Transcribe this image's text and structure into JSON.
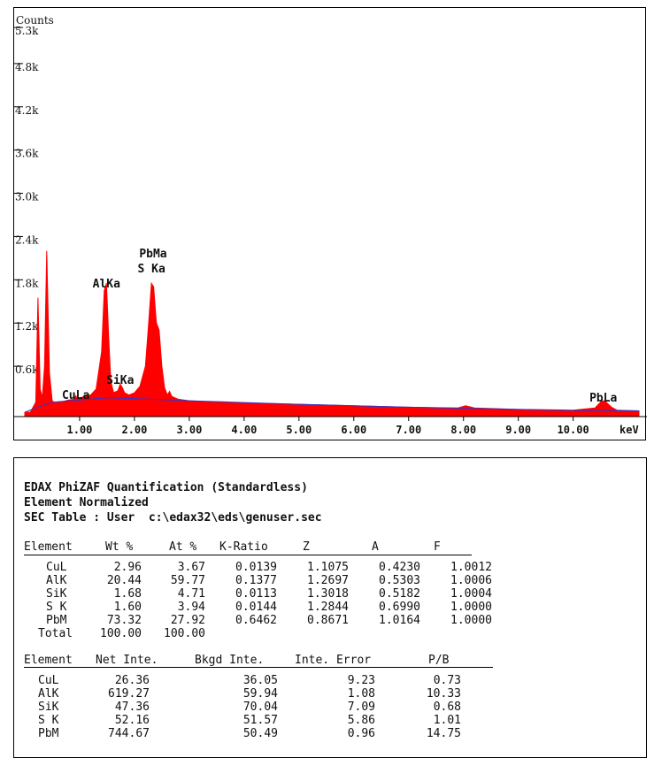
{
  "chart_data": {
    "type": "area",
    "ylabel": "Counts",
    "xlabel": "keV",
    "xlim": [
      0.0,
      11.2
    ],
    "ylim": [
      0,
      5400
    ],
    "y_ticks": [
      "0.6k",
      "1.2k",
      "1.8k",
      "2.4k",
      "3.0k",
      "3.6k",
      "4.2k",
      "4.8k",
      "5.3k"
    ],
    "y_tick_values": [
      600,
      1200,
      1800,
      2400,
      3000,
      3600,
      4200,
      4800,
      5300
    ],
    "x_ticks": [
      "1.00",
      "2.00",
      "3.00",
      "4.00",
      "5.00",
      "6.00",
      "7.00",
      "8.00",
      "9.00",
      "10.00"
    ],
    "x_tick_values": [
      1,
      2,
      3,
      4,
      5,
      6,
      7,
      8,
      9,
      10
    ],
    "x_unit_label": "keV",
    "series": [
      {
        "x": [
          0.0,
          0.1,
          0.2,
          0.24,
          0.28,
          0.32,
          0.36,
          0.4,
          0.45,
          0.5,
          0.55,
          0.6,
          0.7,
          0.8,
          0.9,
          0.93,
          0.96,
          1.0,
          1.1,
          1.2,
          1.3,
          1.4,
          1.45,
          1.49,
          1.53,
          1.57,
          1.62,
          1.7,
          1.74,
          1.78,
          1.82,
          1.9,
          2.0,
          2.1,
          2.2,
          2.26,
          2.31,
          2.35,
          2.4,
          2.45,
          2.5,
          2.55,
          2.6,
          2.64,
          2.68,
          2.8,
          3.0,
          3.5,
          4.0,
          5.0,
          6.0,
          7.0,
          7.9,
          8.04,
          8.2,
          9.0,
          10.0,
          10.4,
          10.5,
          10.55,
          10.6,
          10.7,
          10.8,
          11.2
        ],
        "y": [
          60,
          60,
          200,
          1650,
          380,
          260,
          700,
          2300,
          600,
          220,
          190,
          200,
          210,
          230,
          240,
          290,
          240,
          260,
          280,
          300,
          380,
          900,
          1750,
          1850,
          1100,
          480,
          330,
          360,
          450,
          400,
          330,
          300,
          330,
          420,
          700,
          1300,
          1850,
          1800,
          1300,
          1200,
          700,
          400,
          300,
          350,
          280,
          240,
          220,
          200,
          190,
          170,
          150,
          130,
          120,
          150,
          120,
          100,
          90,
          120,
          200,
          220,
          200,
          130,
          90,
          80
        ]
      },
      {
        "x": [
          0.0,
          0.2,
          0.5,
          1.0,
          1.5,
          2.0,
          2.5,
          3.0,
          4.0,
          5.0,
          6.0,
          7.0,
          8.0,
          9.0,
          10.0,
          11.2
        ],
        "y": [
          60,
          120,
          200,
          230,
          260,
          250,
          235,
          220,
          195,
          170,
          150,
          130,
          115,
          100,
          85,
          80
        ]
      }
    ],
    "peak_labels": [
      {
        "text": "CuLa",
        "x": 0.93
      },
      {
        "text": "AlKa",
        "x": 1.49
      },
      {
        "text": "SiKa",
        "x": 1.74
      },
      {
        "text": "PbMa",
        "x": 2.34,
        "line": 1
      },
      {
        "text": "S Ka",
        "x": 2.31,
        "line": 2
      },
      {
        "text": "PbLa",
        "x": 10.55
      }
    ],
    "colors": {
      "fill": "#ff0000",
      "background_line": "#3333cc"
    }
  },
  "report": {
    "title_lines": [
      "EDAX PhiZAF Quantification (Standardless)",
      "Element Normalized",
      "SEC Table : User  c:\\edax32\\eds\\genuser.sec"
    ],
    "table1": {
      "headers": [
        "Element",
        "Wt %",
        "At %",
        "K-Ratio",
        "Z",
        "A",
        "F"
      ],
      "rows": [
        [
          "CuL",
          "2.96",
          "3.67",
          "0.0139",
          "1.1075",
          "0.4230",
          "1.0012"
        ],
        [
          "AlK",
          "20.44",
          "59.77",
          "0.1377",
          "1.2697",
          "0.5303",
          "1.0006"
        ],
        [
          "SiK",
          "1.68",
          "4.71",
          "0.0113",
          "1.3018",
          "0.5182",
          "1.0004"
        ],
        [
          "S K",
          "1.60",
          "3.94",
          "0.0144",
          "1.2844",
          "0.6990",
          "1.0000"
        ],
        [
          "PbM",
          "73.32",
          "27.92",
          "0.6462",
          "0.8671",
          "1.0164",
          "1.0000"
        ]
      ],
      "total": [
        "Total",
        "100.00",
        "100.00"
      ]
    },
    "table2": {
      "headers": [
        "Element",
        "Net Inte.",
        "Bkgd Inte.",
        "Inte. Error",
        "P/B"
      ],
      "rows": [
        [
          "CuL",
          "26.36",
          "36.05",
          "9.23",
          "0.73"
        ],
        [
          "AlK",
          "619.27",
          "59.94",
          "1.08",
          "10.33"
        ],
        [
          "SiK",
          "47.36",
          "70.04",
          "7.09",
          "0.68"
        ],
        [
          "S K",
          "52.16",
          "51.57",
          "5.86",
          "1.01"
        ],
        [
          "PbM",
          "744.67",
          "50.49",
          "0.96",
          "14.75"
        ]
      ]
    }
  }
}
